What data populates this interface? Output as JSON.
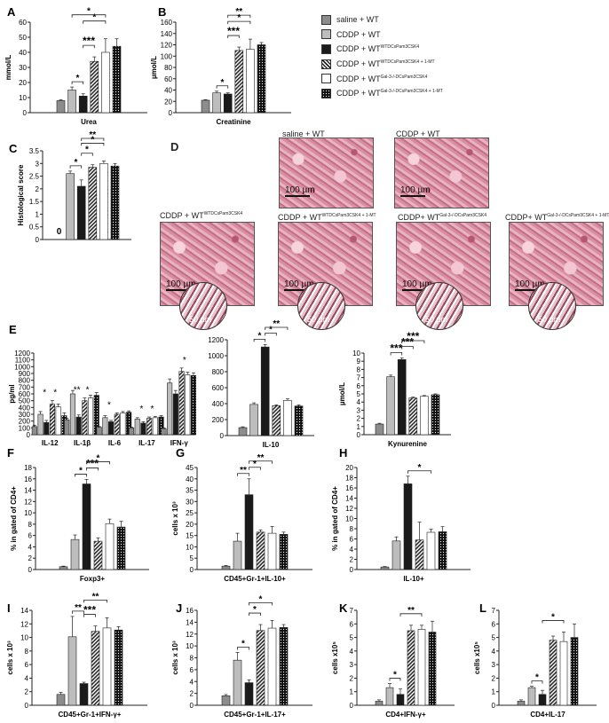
{
  "legend": [
    {
      "label": "saline + WT",
      "sup": "",
      "fill": "#8c8c8c"
    },
    {
      "label": "CDDP + WT",
      "sup": "",
      "fill": "#bdbdbd"
    },
    {
      "label": "CDDP + WT",
      "sup": "WTDCsPam3CSK4",
      "fill": "#1a1a1a"
    },
    {
      "label": "CDDP + WT",
      "sup": "WTDCsPam3CSK4 + 1-MT",
      "fill": "hatch"
    },
    {
      "label": "CDDP + WT",
      "sup": "Gal-3-/-DCsPam3CSK4",
      "fill": "#ffffff"
    },
    {
      "label": "CDDP + WT",
      "sup": "Gal-3-/-DCsPam3CSK4 + 1-MT",
      "fill": "dots"
    }
  ],
  "micro": {
    "panel": "D",
    "scale_label": "100 µm",
    "inset_label": "50 µm",
    "images": [
      {
        "title": "saline + WT",
        "sup": ""
      },
      {
        "title": "CDDP + WT",
        "sup": ""
      },
      {
        "title": "CDDP + WT",
        "sup": "WTDCsPam3CSK4"
      },
      {
        "title": "CDDP + WT",
        "sup": "WTDCsPam3CSK4 + 1-MT"
      },
      {
        "title": "CDDP+ WT",
        "sup": "Gal-3-/-DCsPam3CSK4"
      },
      {
        "title": "CDDP+ WT",
        "sup": "Gal-3-/-DCsPam3CSK4 + 1-MT"
      }
    ]
  },
  "chart_data": [
    {
      "panel": "A",
      "type": "bar",
      "xlabel": "Urea",
      "ylabel": "mmol/L",
      "ylim": [
        0,
        60
      ],
      "yticks": [
        0,
        10,
        20,
        30,
        40,
        50,
        60
      ],
      "values": [
        8,
        15,
        11,
        34,
        40,
        44
      ],
      "errors": [
        0.5,
        2,
        1.5,
        3,
        9,
        5
      ],
      "sig": [
        {
          "from": 1,
          "to": 2,
          "label": "*"
        },
        {
          "from": 2,
          "to": 3,
          "label": "***"
        },
        {
          "from": 2,
          "to": 4,
          "label": "*"
        },
        {
          "from": 1,
          "to": 4,
          "label": "*"
        }
      ]
    },
    {
      "panel": "B",
      "type": "bar",
      "xlabel": "Creatinine",
      "ylabel": "µmol/L",
      "ylim": [
        0,
        160
      ],
      "yticks": [
        0,
        20,
        40,
        60,
        80,
        100,
        120,
        140,
        160
      ],
      "values": [
        22,
        35,
        33,
        110,
        112,
        120
      ],
      "errors": [
        1,
        3,
        2,
        6,
        18,
        4
      ],
      "sig": [
        {
          "from": 1,
          "to": 2,
          "label": "*"
        },
        {
          "from": 2,
          "to": 3,
          "label": "***"
        },
        {
          "from": 2,
          "to": 4,
          "label": "*"
        },
        {
          "from": 2,
          "to": 4,
          "label": "**"
        }
      ]
    },
    {
      "panel": "C",
      "type": "bar",
      "xlabel": "",
      "ylabel": "Histological score",
      "ylim": [
        0,
        3.5
      ],
      "yticks": [
        0,
        0.5,
        1,
        1.5,
        2,
        2.5,
        3,
        3.5
      ],
      "values": [
        0,
        2.6,
        2.1,
        2.85,
        3.0,
        2.9
      ],
      "errors": [
        0,
        0.1,
        0.25,
        0.1,
        0.1,
        0.1
      ],
      "zero_label": "0",
      "sig": [
        {
          "from": 1,
          "to": 2,
          "label": "*"
        },
        {
          "from": 2,
          "to": 3,
          "label": "*"
        },
        {
          "from": 2,
          "to": 4,
          "label": "*"
        },
        {
          "from": 2,
          "to": 4,
          "label": "**"
        }
      ]
    },
    {
      "panel": "E",
      "type": "bar",
      "xlabel": "",
      "ylabel": "pg/ml",
      "ylim": [
        0,
        1200
      ],
      "yticks": [
        0,
        100,
        200,
        300,
        400,
        500,
        600,
        700,
        800,
        900,
        1000,
        1100,
        1200
      ],
      "groups": [
        "IL-12",
        "IL-1β",
        "IL-6",
        "IL-17",
        "IFN-γ"
      ],
      "group_values": [
        [
          120,
          300,
          180,
          450,
          410,
          280
        ],
        [
          220,
          600,
          260,
          500,
          540,
          580
        ],
        [
          110,
          250,
          190,
          300,
          320,
          330
        ],
        [
          100,
          230,
          170,
          240,
          250,
          260
        ],
        [
          90,
          760,
          600,
          930,
          880,
          870
        ]
      ],
      "group_errors": [
        [
          20,
          40,
          30,
          50,
          40,
          40
        ],
        [
          20,
          50,
          30,
          40,
          40,
          40
        ],
        [
          10,
          30,
          20,
          20,
          20,
          20
        ],
        [
          10,
          20,
          20,
          20,
          20,
          20
        ],
        [
          10,
          60,
          50,
          50,
          40,
          40
        ]
      ],
      "sig_labels": [
        "*",
        "*",
        "**",
        "*",
        "*",
        "*",
        "*",
        "*"
      ]
    },
    {
      "panel": "E2",
      "type": "bar",
      "xlabel": "IL-10",
      "ylabel": "",
      "ylim": [
        0,
        1200
      ],
      "yticks": [
        0,
        200,
        400,
        600,
        800,
        1000,
        1200
      ],
      "values": [
        100,
        390,
        1110,
        375,
        440,
        370
      ],
      "errors": [
        10,
        20,
        30,
        10,
        20,
        15
      ],
      "sig": [
        {
          "from": 1,
          "to": 2,
          "label": "*"
        },
        {
          "from": 2,
          "to": 3,
          "label": "*"
        },
        {
          "from": 2,
          "to": 4,
          "label": "**"
        }
      ]
    },
    {
      "panel": "E3",
      "type": "bar",
      "xlabel": "Kynurenine",
      "ylabel": "µmol/L",
      "ylim": [
        0,
        10
      ],
      "yticks": [
        0,
        1,
        2,
        3,
        4,
        5,
        6,
        7,
        8,
        9,
        10
      ],
      "values": [
        1.3,
        7.1,
        9.2,
        4.5,
        4.7,
        4.9
      ],
      "errors": [
        0.1,
        0.2,
        0.2,
        0.1,
        0.1,
        0.1
      ],
      "sig": [
        {
          "from": 1,
          "to": 2,
          "label": "***"
        },
        {
          "from": 2,
          "to": 3,
          "label": "***"
        },
        {
          "from": 2,
          "to": 4,
          "label": "***"
        }
      ]
    },
    {
      "panel": "F",
      "type": "bar",
      "xlabel": "Foxp3+",
      "ylabel": "% in gated of CD4+",
      "ylim": [
        0,
        18
      ],
      "yticks": [
        0,
        2,
        4,
        6,
        8,
        10,
        12,
        14,
        16,
        18
      ],
      "values": [
        0.5,
        5.3,
        15.1,
        5.0,
        8.1,
        7.5
      ],
      "errors": [
        0.1,
        0.8,
        0.8,
        0.6,
        0.8,
        1.0
      ],
      "sig": [
        {
          "from": 1,
          "to": 2,
          "label": "*"
        },
        {
          "from": 2,
          "to": 3,
          "label": "***"
        },
        {
          "from": 2,
          "to": 4,
          "label": "*"
        }
      ]
    },
    {
      "panel": "G",
      "type": "bar",
      "xlabel": "CD45+Gr-1+IL-10+",
      "ylabel": "cells x 10³",
      "ylim": [
        0,
        45
      ],
      "yticks": [
        0,
        5,
        10,
        15,
        20,
        25,
        30,
        35,
        40,
        45
      ],
      "values": [
        1.5,
        12.5,
        33,
        16.5,
        16,
        15.5
      ],
      "errors": [
        0.3,
        3.5,
        7,
        1,
        3,
        1
      ],
      "sig": [
        {
          "from": 1,
          "to": 2,
          "label": "**"
        },
        {
          "from": 2,
          "to": 3,
          "label": "*"
        },
        {
          "from": 2,
          "to": 4,
          "label": "**"
        }
      ]
    },
    {
      "panel": "H",
      "type": "bar",
      "xlabel": "IL-10+",
      "ylabel": "% in gated of CD4+",
      "ylim": [
        0,
        20
      ],
      "yticks": [
        0,
        2,
        4,
        6,
        8,
        10,
        12,
        14,
        16,
        18,
        20
      ],
      "values": [
        0.5,
        5.6,
        16.8,
        5.8,
        7.3,
        7.4
      ],
      "errors": [
        0.1,
        0.8,
        1.5,
        3.5,
        0.6,
        1.0
      ],
      "sig": [
        {
          "from": 2,
          "to": 4,
          "label": "*"
        }
      ]
    },
    {
      "panel": "I",
      "type": "bar",
      "xlabel": "CD45+Gr-1+IFN-γ+",
      "ylabel": "cells x 10³",
      "ylim": [
        0,
        14
      ],
      "yticks": [
        0,
        2,
        4,
        6,
        8,
        10,
        12,
        14
      ],
      "values": [
        1.6,
        10.1,
        3.2,
        10.9,
        11.4,
        11.1
      ],
      "errors": [
        0.3,
        3.0,
        0.2,
        0.8,
        1.5,
        0.5
      ],
      "sig": [
        {
          "from": 1,
          "to": 2,
          "label": "**"
        },
        {
          "from": 2,
          "to": 3,
          "label": "***"
        },
        {
          "from": 2,
          "to": 4,
          "label": "**"
        }
      ]
    },
    {
      "panel": "J",
      "type": "bar",
      "xlabel": "CD45+Gr-1+IL-17+",
      "ylabel": "cells x 10³",
      "ylim": [
        0,
        16
      ],
      "yticks": [
        0,
        2,
        4,
        6,
        8,
        10,
        12,
        14,
        16
      ],
      "values": [
        1.6,
        7.6,
        3.8,
        12.6,
        13.0,
        13.1
      ],
      "errors": [
        0.2,
        1.3,
        0.5,
        1.0,
        1.3,
        0.5
      ],
      "sig": [
        {
          "from": 1,
          "to": 2,
          "label": "*"
        },
        {
          "from": 2,
          "to": 3,
          "label": "*"
        },
        {
          "from": 2,
          "to": 4,
          "label": "*"
        }
      ]
    },
    {
      "panel": "K",
      "type": "bar",
      "xlabel": "CD4+IFN-γ+",
      "ylabel": "cells x10⁵",
      "ylim": [
        0,
        7
      ],
      "yticks": [
        0,
        1,
        2,
        3,
        4,
        5,
        6,
        7
      ],
      "values": [
        0.3,
        1.3,
        0.8,
        5.5,
        5.6,
        5.4
      ],
      "errors": [
        0.1,
        0.3,
        0.4,
        0.4,
        0.3,
        0.8
      ],
      "sig": [
        {
          "from": 1,
          "to": 2,
          "label": "*"
        },
        {
          "from": 2,
          "to": 4,
          "label": "**"
        }
      ]
    },
    {
      "panel": "L",
      "type": "bar",
      "xlabel": "CD4+IL-17",
      "ylabel": "cells x10⁵",
      "ylim": [
        0,
        7
      ],
      "yticks": [
        0,
        1,
        2,
        3,
        4,
        5,
        6,
        7
      ],
      "values": [
        0.3,
        1.3,
        0.8,
        4.8,
        4.7,
        5.0
      ],
      "errors": [
        0.1,
        0.1,
        0.3,
        0.3,
        0.7,
        1.0
      ],
      "sig": [
        {
          "from": 1,
          "to": 2,
          "label": "*"
        },
        {
          "from": 2,
          "to": 4,
          "label": "*"
        }
      ]
    }
  ]
}
